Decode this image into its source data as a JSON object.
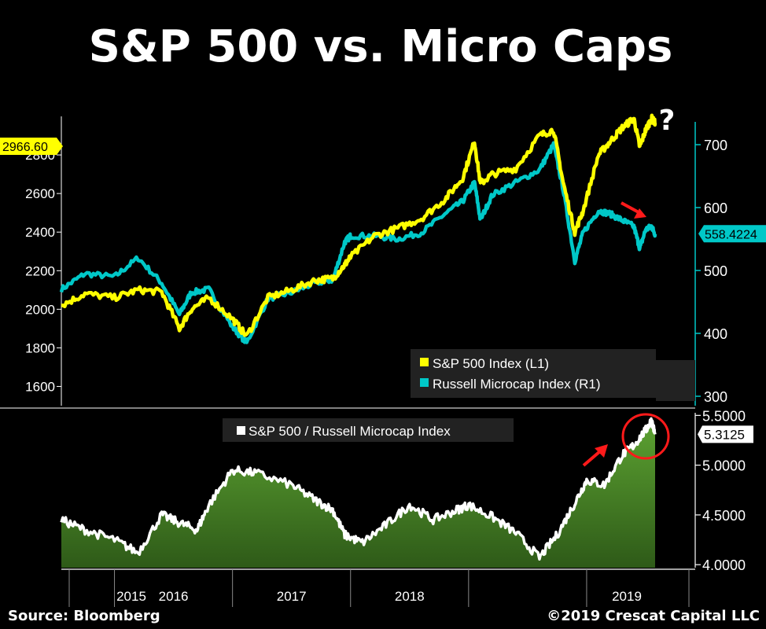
{
  "title": "S&P 500 vs. Micro Caps",
  "question_mark": "?",
  "source": "Source: Bloomberg",
  "copyright": "©2019 Crescat Capital LLC",
  "colors": {
    "background": "#000000",
    "sp500": "#ffff00",
    "microcap": "#00c8c8",
    "ratio_line": "#ffffff",
    "ratio_fill": "#4a8a2a",
    "annotation": "#ff1a1a",
    "axis": "#ffffff"
  },
  "chart_data": [
    {
      "type": "line",
      "panel": "top",
      "legend_position": "bottom-right",
      "x": [
        2014.55,
        2014.75,
        2015.0,
        2015.2,
        2015.4,
        2015.55,
        2015.65,
        2015.8,
        2016.0,
        2016.12,
        2016.3,
        2016.5,
        2016.7,
        2016.85,
        2016.95,
        2017.0,
        2017.2,
        2017.4,
        2017.6,
        2017.8,
        2017.95,
        2018.05,
        2018.1,
        2018.2,
        2018.4,
        2018.6,
        2018.72,
        2018.8,
        2018.9,
        2018.97,
        2019.1,
        2019.2,
        2019.3,
        2019.4,
        2019.45,
        2019.5,
        2019.55,
        2019.58
      ],
      "left_axis": {
        "ticks": [
          1600,
          1800,
          2000,
          2200,
          2400,
          2600,
          2800
        ],
        "ylim": [
          1500,
          3000
        ]
      },
      "right_axis": {
        "ticks": [
          300,
          400,
          500,
          600,
          700
        ],
        "ylim": [
          285,
          745
        ]
      },
      "series": [
        {
          "name": "S&P 500 Index (L1)",
          "axis": "left",
          "last_value": "2966.60",
          "values": [
            2020,
            2080,
            2060,
            2100,
            2090,
            1900,
            2000,
            2060,
            1950,
            1860,
            2060,
            2100,
            2150,
            2160,
            2230,
            2270,
            2380,
            2420,
            2470,
            2570,
            2680,
            2870,
            2650,
            2700,
            2730,
            2900,
            2930,
            2660,
            2400,
            2510,
            2800,
            2870,
            2940,
            2990,
            2840,
            2930,
            2990,
            2966
          ]
        },
        {
          "name": "Russell Microcap Index (R1)",
          "axis": "right",
          "last_value": "558.4224",
          "values": [
            470,
            495,
            490,
            520,
            480,
            430,
            465,
            470,
            410,
            385,
            455,
            465,
            480,
            485,
            545,
            555,
            555,
            550,
            560,
            590,
            610,
            640,
            580,
            620,
            640,
            660,
            700,
            630,
            515,
            560,
            595,
            590,
            580,
            570,
            535,
            565,
            570,
            558
          ]
        }
      ]
    },
    {
      "type": "area",
      "panel": "bottom",
      "legend_position": "top-left",
      "x": [
        2014.55,
        2014.75,
        2015.0,
        2015.2,
        2015.4,
        2015.55,
        2015.7,
        2015.8,
        2016.0,
        2016.2,
        2016.5,
        2016.7,
        2016.85,
        2016.95,
        2017.1,
        2017.3,
        2017.5,
        2017.7,
        2017.9,
        2018.0,
        2018.2,
        2018.4,
        2018.6,
        2018.75,
        2018.9,
        2019.0,
        2019.15,
        2019.3,
        2019.4,
        2019.5,
        2019.55,
        2019.58
      ],
      "right_axis": {
        "ticks": [
          "4.0000",
          "4.5000",
          "5.0000",
          "5.5000"
        ],
        "ylim": [
          3.97,
          5.55
        ]
      },
      "series": [
        {
          "name": "S&P 500 / Russell Microcap Index",
          "last_value": "5.3125",
          "values": [
            4.45,
            4.35,
            4.25,
            4.12,
            4.5,
            4.42,
            4.35,
            4.6,
            4.95,
            4.92,
            4.8,
            4.65,
            4.55,
            4.3,
            4.22,
            4.4,
            4.6,
            4.45,
            4.55,
            4.6,
            4.48,
            4.32,
            4.07,
            4.3,
            4.62,
            4.85,
            4.8,
            5.1,
            5.2,
            5.35,
            5.45,
            5.31
          ]
        }
      ]
    }
  ],
  "x_axis": {
    "tick_labels": [
      "2015",
      "2016",
      "2017",
      "2018",
      "2019"
    ]
  }
}
